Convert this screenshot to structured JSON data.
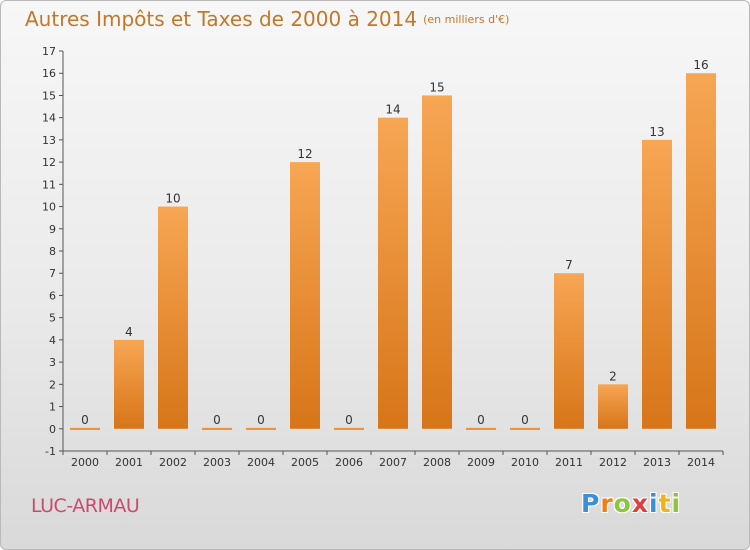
{
  "title": "Autres Impôts et Taxes de 2000 à 2014",
  "title_unit": "(en milliers d'€)",
  "commune": "LUC-ARMAU",
  "logo": {
    "text": "Proxiti",
    "letters": [
      {
        "ch": "P",
        "color": "#3a8fd6"
      },
      {
        "ch": "r",
        "color": "#f07d1a"
      },
      {
        "ch": "o",
        "color": "#8cc63f"
      },
      {
        "ch": "x",
        "color": "#e23d3d"
      },
      {
        "ch": "i",
        "color": "#3a8fd6"
      },
      {
        "ch": "t",
        "color": "#f0b41a"
      },
      {
        "ch": "i",
        "color": "#8cc63f"
      }
    ]
  },
  "colors": {
    "bar_top": "#f7a654",
    "bar_bottom": "#d77518",
    "title": "#c0782a",
    "commune": "#cc4a6f"
  },
  "chart_data": {
    "type": "bar",
    "categories": [
      "2000",
      "2001",
      "2002",
      "2003",
      "2004",
      "2005",
      "2006",
      "2007",
      "2008",
      "2009",
      "2010",
      "2011",
      "2012",
      "2013",
      "2014"
    ],
    "values": [
      0,
      4,
      10,
      0,
      0,
      12,
      0,
      14,
      15,
      0,
      0,
      7,
      2,
      13,
      16
    ],
    "data_labels": [
      "0",
      "4",
      "10",
      "0",
      "0",
      "12",
      "0",
      "14",
      "15",
      "0",
      "0",
      "7",
      "2",
      "13",
      "16"
    ],
    "ylim": [
      -1,
      17
    ],
    "yticks": [
      "-1",
      "0",
      "1",
      "2",
      "3",
      "4",
      "5",
      "6",
      "7",
      "8",
      "9",
      "10",
      "11",
      "12",
      "13",
      "14",
      "15",
      "16",
      "17"
    ],
    "grid": false,
    "legend": "none"
  }
}
